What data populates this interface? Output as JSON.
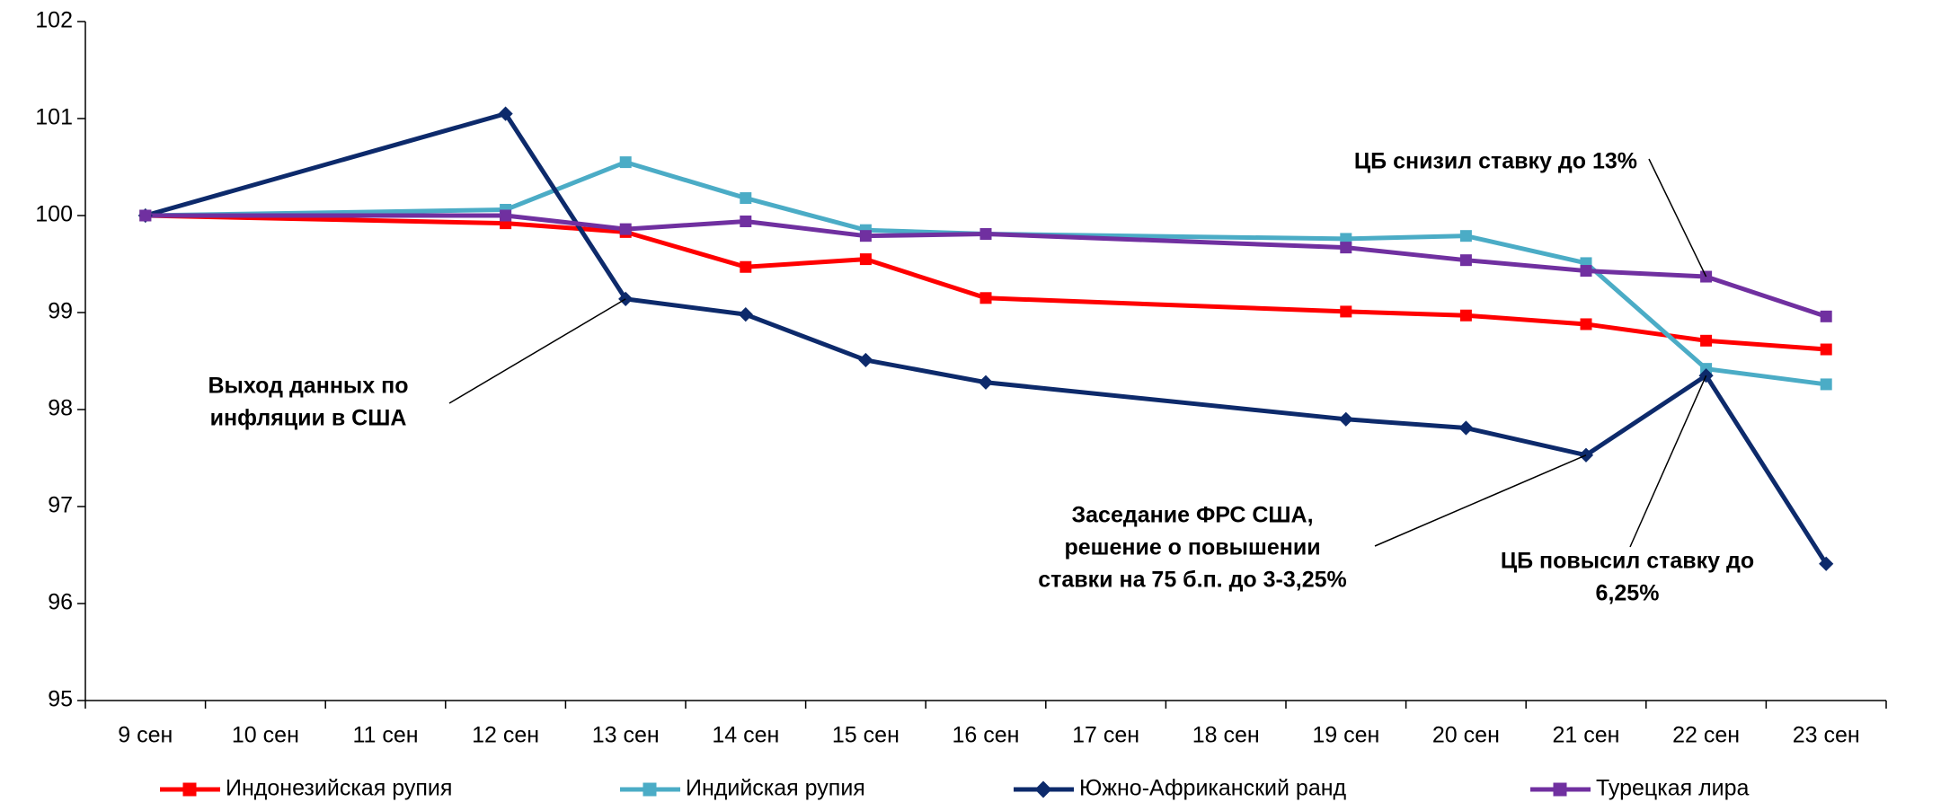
{
  "chart_data": {
    "type": "line",
    "categories": [
      "9 сен",
      "10 сен",
      "11 сен",
      "12 сен",
      "13 сен",
      "14 сен",
      "15 сен",
      "16 сен",
      "17 сен",
      "18 сен",
      "19 сен",
      "20 сен",
      "21 сен",
      "22 сен",
      "23 сен"
    ],
    "series": [
      {
        "name": "Индонезийская рупия",
        "color": "#ff0000",
        "marker": "square",
        "values": [
          100,
          null,
          null,
          99.92,
          99.83,
          99.47,
          99.55,
          99.15,
          null,
          null,
          99.01,
          98.97,
          98.88,
          98.71,
          98.62
        ]
      },
      {
        "name": "Индийская рупия",
        "color": "#4bacc6",
        "marker": "square",
        "values": [
          100,
          null,
          null,
          100.06,
          100.55,
          100.18,
          99.85,
          99.81,
          null,
          null,
          99.76,
          99.79,
          99.51,
          98.42,
          98.26
        ]
      },
      {
        "name": "Южно-Африканский ранд",
        "color": "#0d2a6b",
        "marker": "diamond",
        "values": [
          100,
          null,
          null,
          101.05,
          99.14,
          98.98,
          98.51,
          98.28,
          null,
          null,
          97.9,
          97.81,
          97.53,
          98.35,
          96.41
        ]
      },
      {
        "name": "Турецкая лира",
        "color": "#7030a0",
        "marker": "square",
        "values": [
          100,
          null,
          null,
          100,
          99.86,
          99.94,
          99.79,
          99.81,
          null,
          null,
          99.67,
          99.54,
          99.43,
          99.37,
          98.96
        ]
      }
    ],
    "ylim": [
      95,
      102
    ],
    "yticks": [
      95,
      96,
      97,
      98,
      99,
      100,
      101,
      102
    ],
    "grid": false,
    "legend": "bottom",
    "annotations": [
      {
        "lines": [
          "Выход данных по",
          "инфляции в США"
        ]
      },
      {
        "lines": [
          "ЦБ снизил ставку до 13%"
        ]
      },
      {
        "lines": [
          "Заседание ФРС США,",
          "решение о повышении",
          "ставки на 75 б.п. до 3-3,25%"
        ]
      },
      {
        "lines": [
          "ЦБ повысил ставку до",
          "6,25%"
        ]
      }
    ]
  }
}
